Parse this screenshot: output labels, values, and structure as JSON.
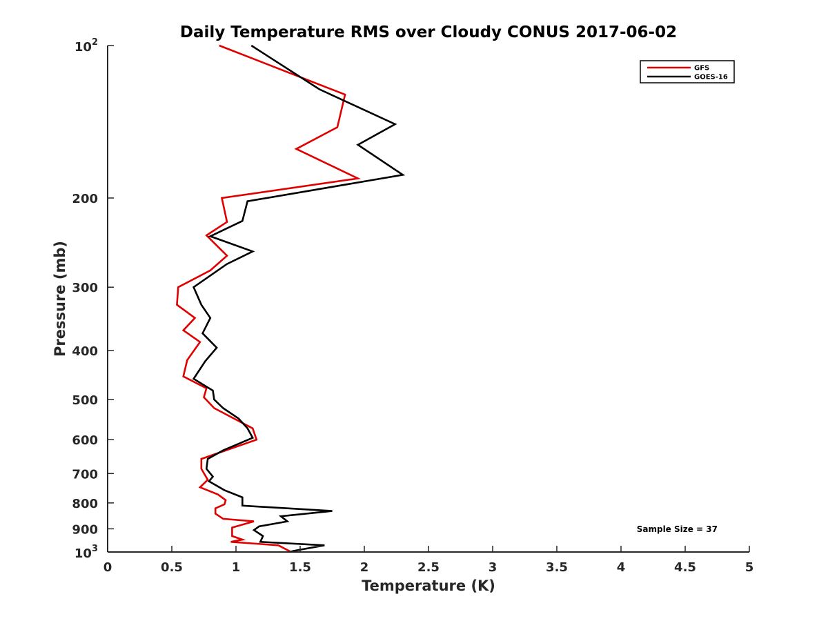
{
  "chart_data": {
    "type": "line",
    "title": "Daily Temperature RMS over Cloudy CONUS 2017-06-02",
    "xlabel": "Temperature (K)",
    "ylabel": "Pressure (mb)",
    "xlim": [
      0,
      5
    ],
    "ylim": [
      100,
      1000
    ],
    "y_scale": "log",
    "y_reversed": true,
    "x_ticks": [
      "0",
      "0.5",
      "1",
      "1.5",
      "2",
      "2.5",
      "3",
      "3.5",
      "4",
      "4.5",
      "5"
    ],
    "y_ticks": [
      {
        "value": 100,
        "base": "10",
        "exp": "2"
      },
      {
        "value": 200,
        "label": "200"
      },
      {
        "value": 300,
        "label": "300"
      },
      {
        "value": 400,
        "label": "400"
      },
      {
        "value": 500,
        "label": "500"
      },
      {
        "value": 600,
        "label": "600"
      },
      {
        "value": 700,
        "label": "700"
      },
      {
        "value": 800,
        "label": "800"
      },
      {
        "value": 900,
        "label": "900"
      },
      {
        "value": 1000,
        "base": "10",
        "exp": "3"
      }
    ],
    "grid": false,
    "legend_position": "top-right",
    "annotation": "Sample Size = 37",
    "series": [
      {
        "name": "GFS",
        "color": "#e00000",
        "points": [
          [
            0.87,
            100
          ],
          [
            1.85,
            125
          ],
          [
            1.79,
            145
          ],
          [
            1.47,
            160
          ],
          [
            1.95,
            183
          ],
          [
            0.89,
            200
          ],
          [
            0.93,
            223
          ],
          [
            0.77,
            237
          ],
          [
            0.93,
            260
          ],
          [
            0.8,
            278
          ],
          [
            0.55,
            300
          ],
          [
            0.54,
            325
          ],
          [
            0.68,
            345
          ],
          [
            0.59,
            365
          ],
          [
            0.72,
            385
          ],
          [
            0.62,
            418
          ],
          [
            0.59,
            450
          ],
          [
            0.77,
            475
          ],
          [
            0.75,
            495
          ],
          [
            0.83,
            520
          ],
          [
            1.13,
            570
          ],
          [
            1.16,
            600
          ],
          [
            0.73,
            655
          ],
          [
            0.73,
            685
          ],
          [
            0.78,
            720
          ],
          [
            0.72,
            745
          ],
          [
            0.86,
            770
          ],
          [
            0.92,
            790
          ],
          [
            0.91,
            805
          ],
          [
            0.84,
            820
          ],
          [
            0.84,
            840
          ],
          [
            0.9,
            860
          ],
          [
            1.14,
            870
          ],
          [
            0.97,
            895
          ],
          [
            0.97,
            930
          ],
          [
            1.05,
            945
          ],
          [
            0.96,
            955
          ],
          [
            1.33,
            970
          ],
          [
            1.43,
            1000
          ]
        ]
      },
      {
        "name": "GOES-16",
        "color": "#000000",
        "points": [
          [
            1.12,
            100
          ],
          [
            1.65,
            122
          ],
          [
            2.24,
            143
          ],
          [
            1.95,
            157
          ],
          [
            2.3,
            180
          ],
          [
            1.09,
            203
          ],
          [
            1.05,
            222
          ],
          [
            0.8,
            238
          ],
          [
            1.13,
            255
          ],
          [
            0.93,
            270
          ],
          [
            0.67,
            300
          ],
          [
            0.73,
            325
          ],
          [
            0.8,
            345
          ],
          [
            0.74,
            370
          ],
          [
            0.85,
            395
          ],
          [
            0.76,
            420
          ],
          [
            0.67,
            455
          ],
          [
            0.82,
            480
          ],
          [
            0.83,
            500
          ],
          [
            0.9,
            520
          ],
          [
            1.02,
            545
          ],
          [
            1.09,
            570
          ],
          [
            1.13,
            595
          ],
          [
            0.9,
            630
          ],
          [
            0.78,
            655
          ],
          [
            0.77,
            685
          ],
          [
            0.82,
            710
          ],
          [
            0.79,
            725
          ],
          [
            0.91,
            755
          ],
          [
            1.05,
            780
          ],
          [
            1.05,
            810
          ],
          [
            1.75,
            830
          ],
          [
            1.35,
            850
          ],
          [
            1.4,
            870
          ],
          [
            1.18,
            890
          ],
          [
            1.14,
            905
          ],
          [
            1.21,
            930
          ],
          [
            1.19,
            955
          ],
          [
            1.69,
            970
          ],
          [
            1.45,
            995
          ],
          [
            1.42,
            1000
          ]
        ]
      }
    ]
  }
}
